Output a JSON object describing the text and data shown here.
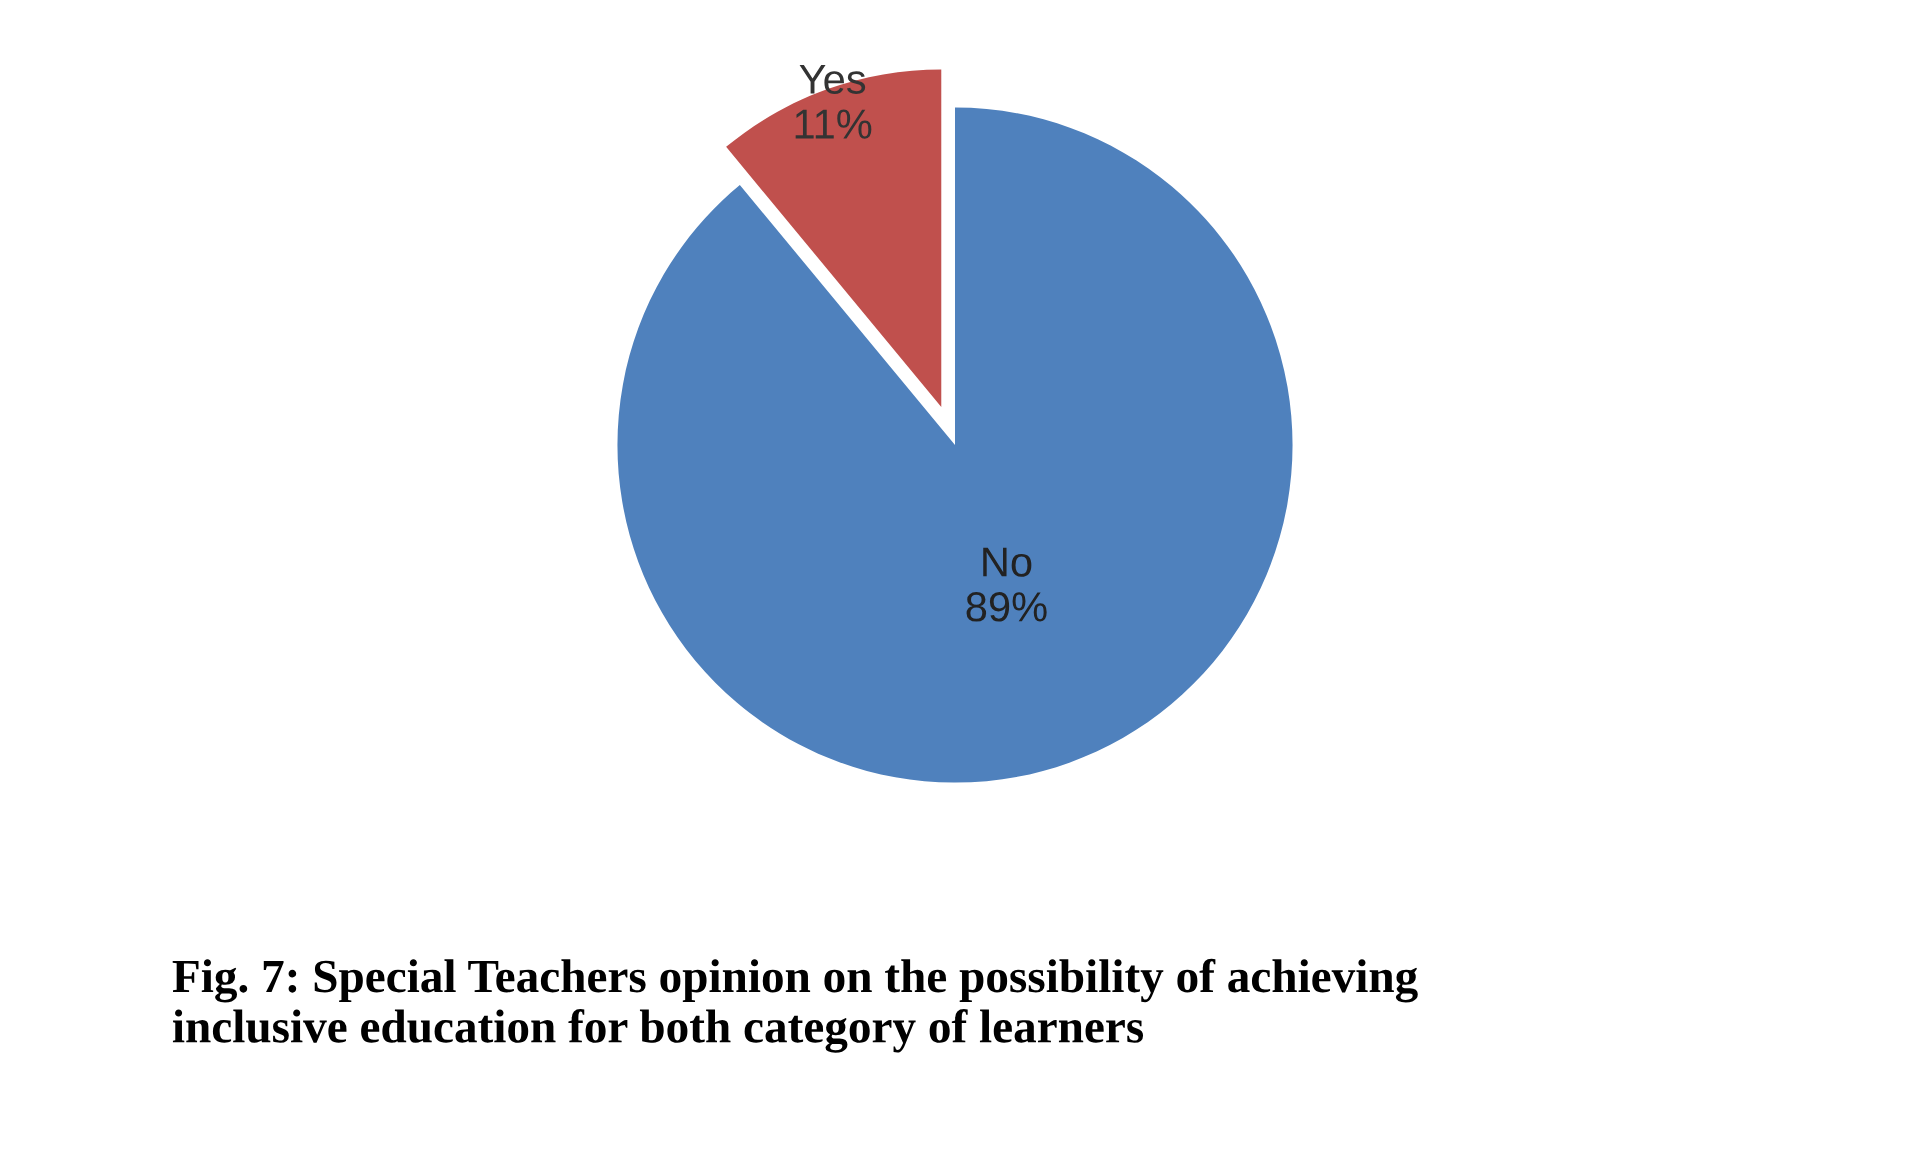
{
  "chart_data": {
    "type": "pie",
    "categories": [
      "No",
      "Yes"
    ],
    "values": [
      89,
      11
    ],
    "colors": [
      "#4f81bd",
      "#c0504d"
    ],
    "value_labels": [
      "89%",
      "11%"
    ],
    "legend": false,
    "annotations": [
      "Fig. 7: Special Teachers opinion on the possibility of achieving\ninclusive education for both category of learners"
    ]
  }
}
